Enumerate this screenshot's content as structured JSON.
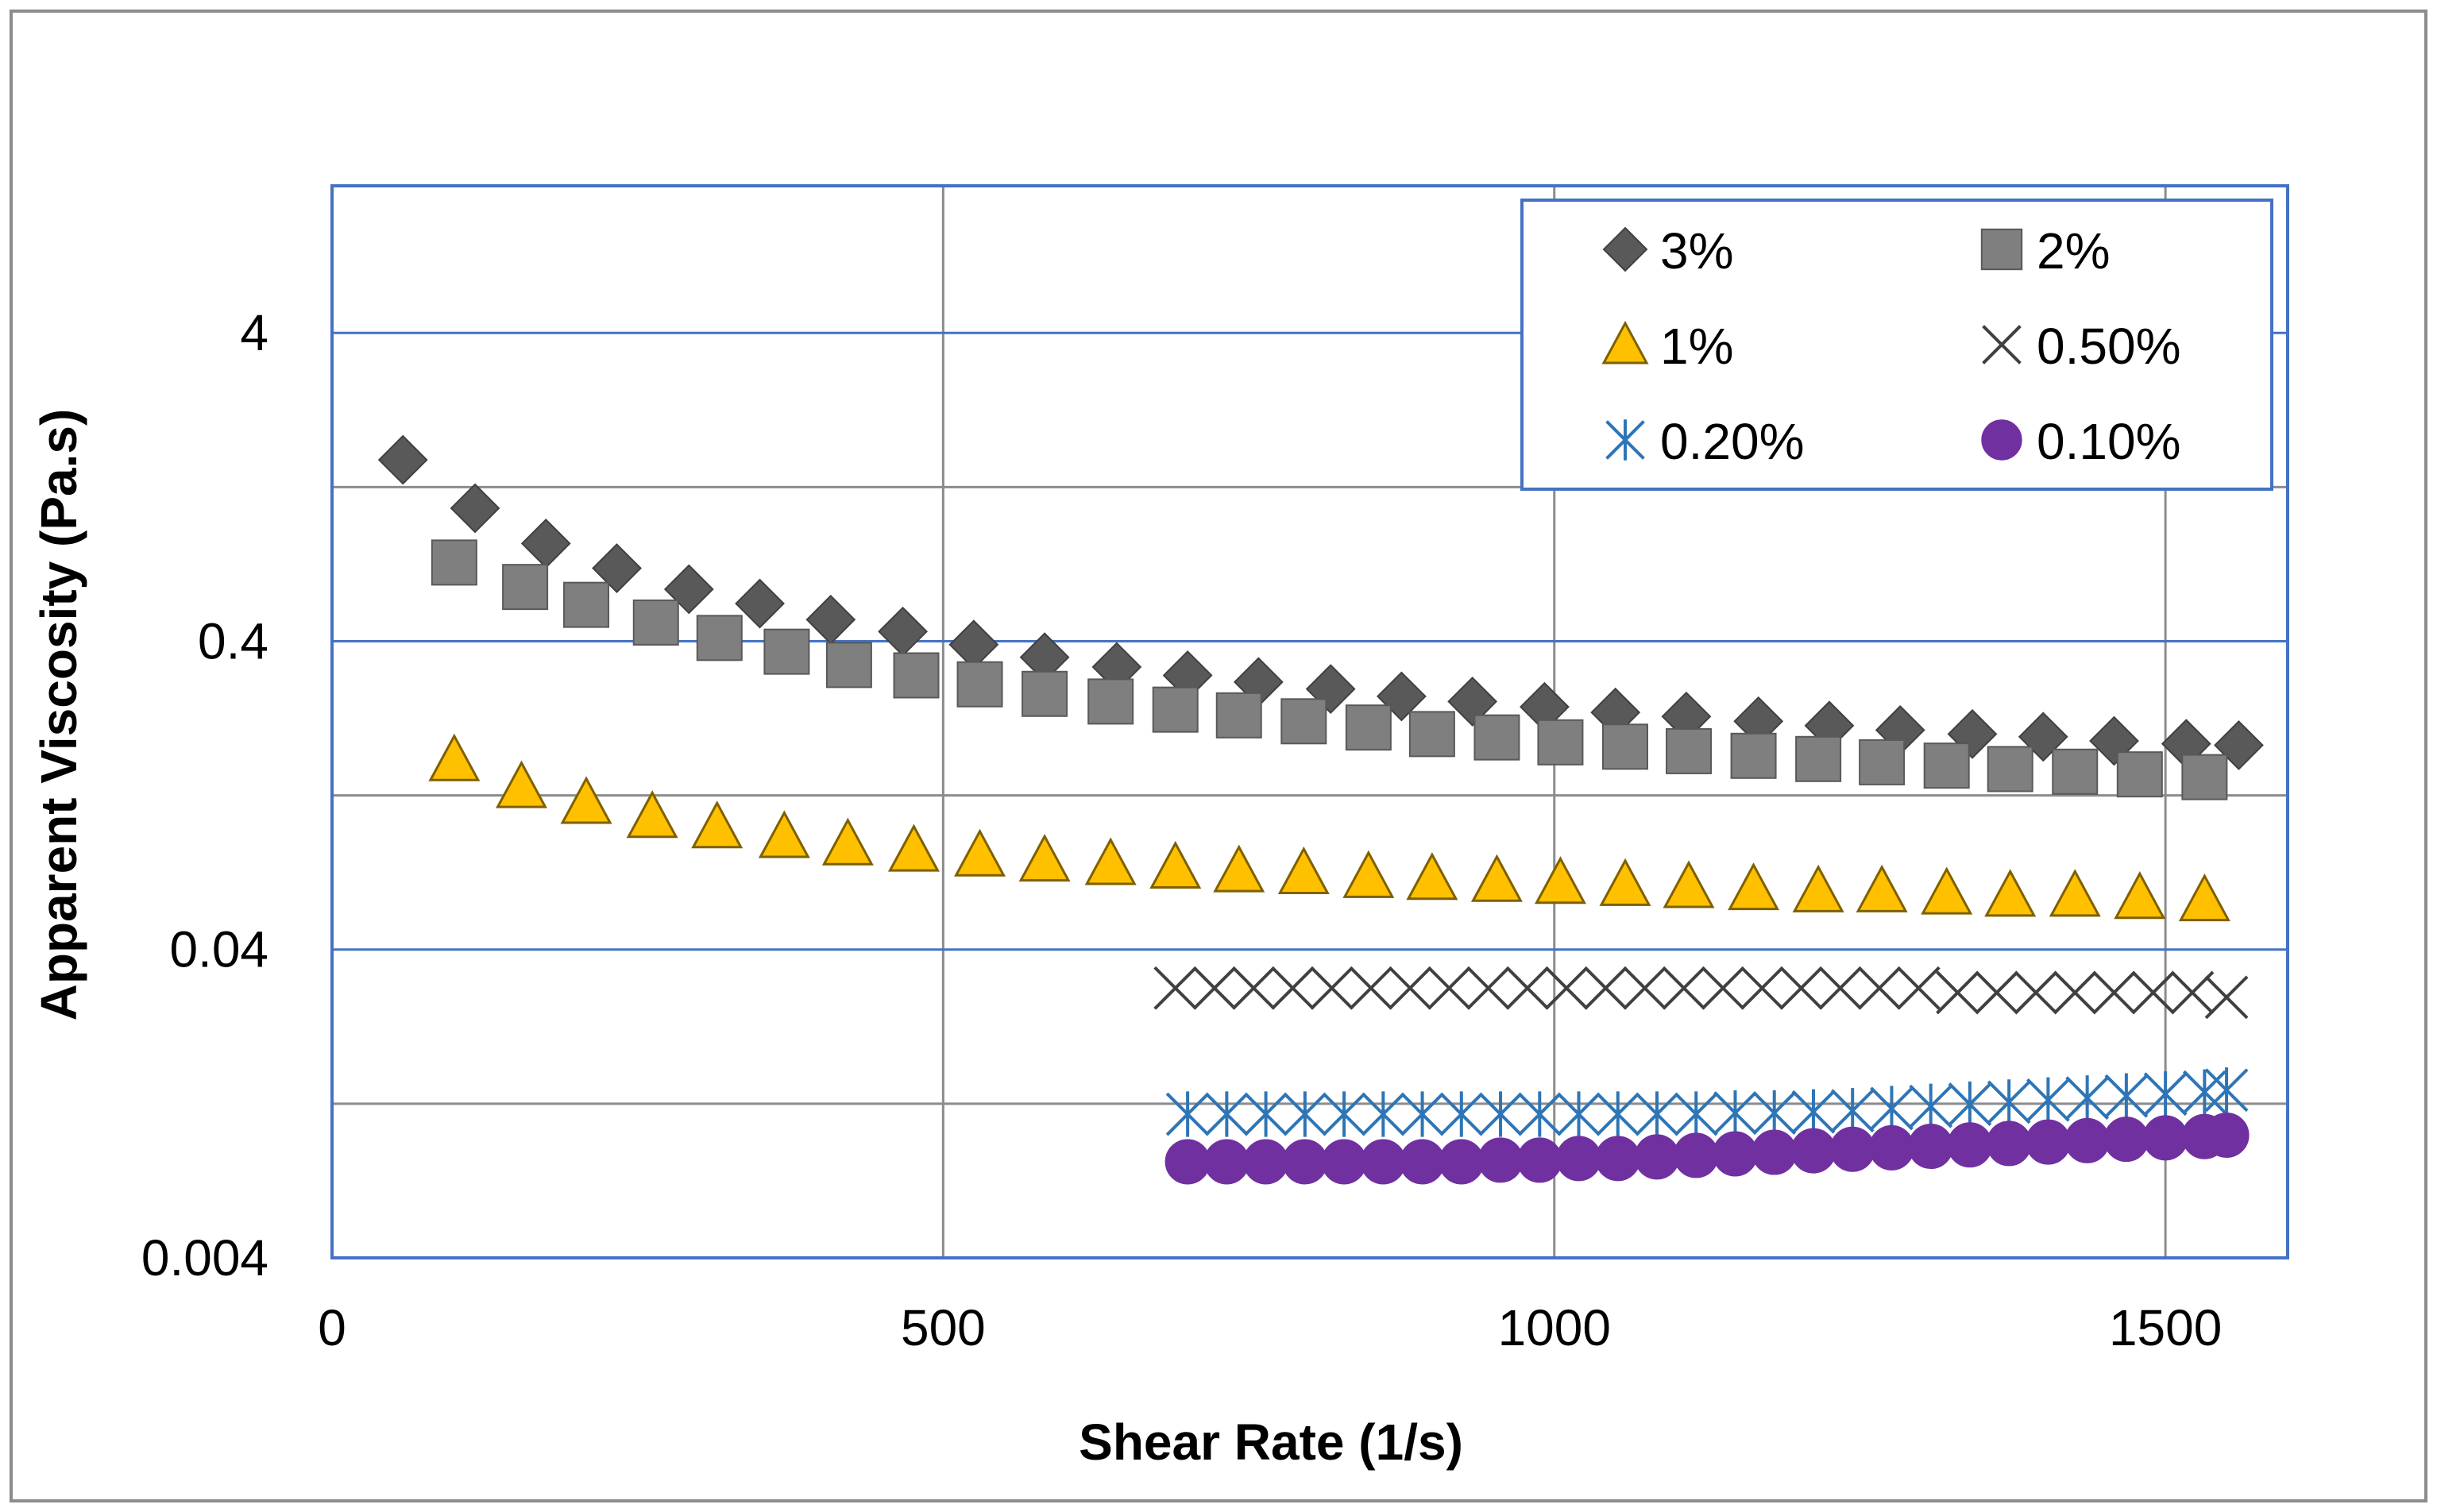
{
  "chart_data": {
    "type": "scatter",
    "title": "",
    "xlabel": "Shear Rate (1/s)",
    "ylabel": "Apparent Viscosity (Pa.s)",
    "xscale": "linear",
    "yscale": "log",
    "xlim": [
      0,
      1600
    ],
    "ylim": [
      0.004,
      12
    ],
    "x_ticks": [
      0,
      500,
      1000,
      1500
    ],
    "x_tick_labels": [
      "0",
      "500",
      "1000",
      "1500"
    ],
    "y_ticks": [
      0.004,
      0.04,
      0.4,
      4
    ],
    "y_tick_labels": [
      "0.004",
      "0.04",
      "0.4",
      "4"
    ],
    "grid": true,
    "legend": "top-right",
    "series": [
      {
        "name": "3%",
        "marker": "diamond",
        "color": "#595959",
        "x": [
          58,
          117,
          175,
          233,
          292,
          350,
          408,
          467,
          525,
          583,
          642,
          700,
          758,
          817,
          875,
          933,
          992,
          1050,
          1108,
          1167,
          1225,
          1283,
          1342,
          1400,
          1458,
          1517,
          1560
        ],
        "y": [
          1.55,
          1.08,
          0.83,
          0.69,
          0.59,
          0.53,
          0.47,
          0.43,
          0.39,
          0.355,
          0.33,
          0.31,
          0.295,
          0.28,
          0.265,
          0.255,
          0.245,
          0.235,
          0.228,
          0.22,
          0.213,
          0.206,
          0.2,
          0.196,
          0.19,
          0.186,
          0.184
        ]
      },
      {
        "name": "2%",
        "marker": "square",
        "color": "#7f7f7f",
        "x": [
          100,
          158,
          208,
          265,
          317,
          372,
          423,
          478,
          530,
          583,
          637,
          690,
          742,
          795,
          848,
          900,
          953,
          1005,
          1058,
          1110,
          1163,
          1216,
          1268,
          1321,
          1373,
          1426,
          1479,
          1532
        ],
        "y": [
          0.72,
          0.6,
          0.525,
          0.46,
          0.41,
          0.37,
          0.335,
          0.31,
          0.29,
          0.27,
          0.255,
          0.24,
          0.23,
          0.22,
          0.21,
          0.2,
          0.195,
          0.188,
          0.182,
          0.176,
          0.17,
          0.166,
          0.162,
          0.158,
          0.154,
          0.151,
          0.148,
          0.145
        ]
      },
      {
        "name": "1%",
        "marker": "triangle",
        "color": "#ffc000",
        "x": [
          100,
          155,
          208,
          262,
          315,
          370,
          422,
          476,
          530,
          583,
          637,
          690,
          742,
          795,
          848,
          900,
          953,
          1005,
          1058,
          1110,
          1163,
          1216,
          1268,
          1321,
          1373,
          1426,
          1479,
          1532
        ],
        "y": [
          0.165,
          0.135,
          0.12,
          0.108,
          0.1,
          0.093,
          0.088,
          0.084,
          0.081,
          0.078,
          0.076,
          0.074,
          0.072,
          0.071,
          0.069,
          0.068,
          0.067,
          0.066,
          0.065,
          0.064,
          0.063,
          0.062,
          0.062,
          0.061,
          0.06,
          0.06,
          0.059,
          0.058
        ]
      },
      {
        "name": "0.50%",
        "marker": "x",
        "color": "#404040",
        "x": [
          690,
          722,
          754,
          786,
          818,
          850,
          882,
          914,
          946,
          978,
          1010,
          1042,
          1074,
          1106,
          1138,
          1170,
          1202,
          1234,
          1266,
          1298,
          1330,
          1362,
          1394,
          1426,
          1458,
          1490,
          1522,
          1550
        ],
        "y": [
          0.03,
          0.03,
          0.03,
          0.03,
          0.03,
          0.03,
          0.03,
          0.03,
          0.03,
          0.03,
          0.03,
          0.03,
          0.03,
          0.03,
          0.03,
          0.03,
          0.03,
          0.03,
          0.03,
          0.03,
          0.029,
          0.029,
          0.029,
          0.029,
          0.029,
          0.029,
          0.029,
          0.028
        ]
      },
      {
        "name": "0.20%",
        "marker": "asterisk",
        "color": "#2e75b6",
        "x": [
          700,
          732,
          764,
          796,
          828,
          860,
          892,
          924,
          956,
          988,
          1020,
          1052,
          1084,
          1116,
          1148,
          1180,
          1212,
          1244,
          1276,
          1308,
          1340,
          1372,
          1404,
          1436,
          1468,
          1500,
          1532,
          1550
        ],
        "y": [
          0.0117,
          0.0117,
          0.0117,
          0.0117,
          0.0117,
          0.0117,
          0.0117,
          0.0117,
          0.0117,
          0.0117,
          0.0117,
          0.0117,
          0.0117,
          0.0117,
          0.0118,
          0.0118,
          0.0119,
          0.012,
          0.0122,
          0.0124,
          0.0126,
          0.0128,
          0.013,
          0.0132,
          0.0134,
          0.0136,
          0.0138,
          0.014
        ]
      },
      {
        "name": "0.10%",
        "marker": "circle",
        "color": "#7030a0",
        "x": [
          700,
          732,
          764,
          796,
          828,
          860,
          892,
          924,
          956,
          988,
          1020,
          1052,
          1084,
          1116,
          1148,
          1180,
          1212,
          1244,
          1276,
          1308,
          1340,
          1372,
          1404,
          1436,
          1468,
          1500,
          1532,
          1550
        ],
        "y": [
          0.0082,
          0.0082,
          0.0082,
          0.0082,
          0.0082,
          0.0082,
          0.0082,
          0.0082,
          0.0083,
          0.0083,
          0.0084,
          0.0084,
          0.0085,
          0.0086,
          0.0087,
          0.0088,
          0.0089,
          0.009,
          0.0091,
          0.0092,
          0.0093,
          0.0094,
          0.0095,
          0.0096,
          0.0097,
          0.0098,
          0.0099,
          0.01
        ]
      }
    ]
  }
}
